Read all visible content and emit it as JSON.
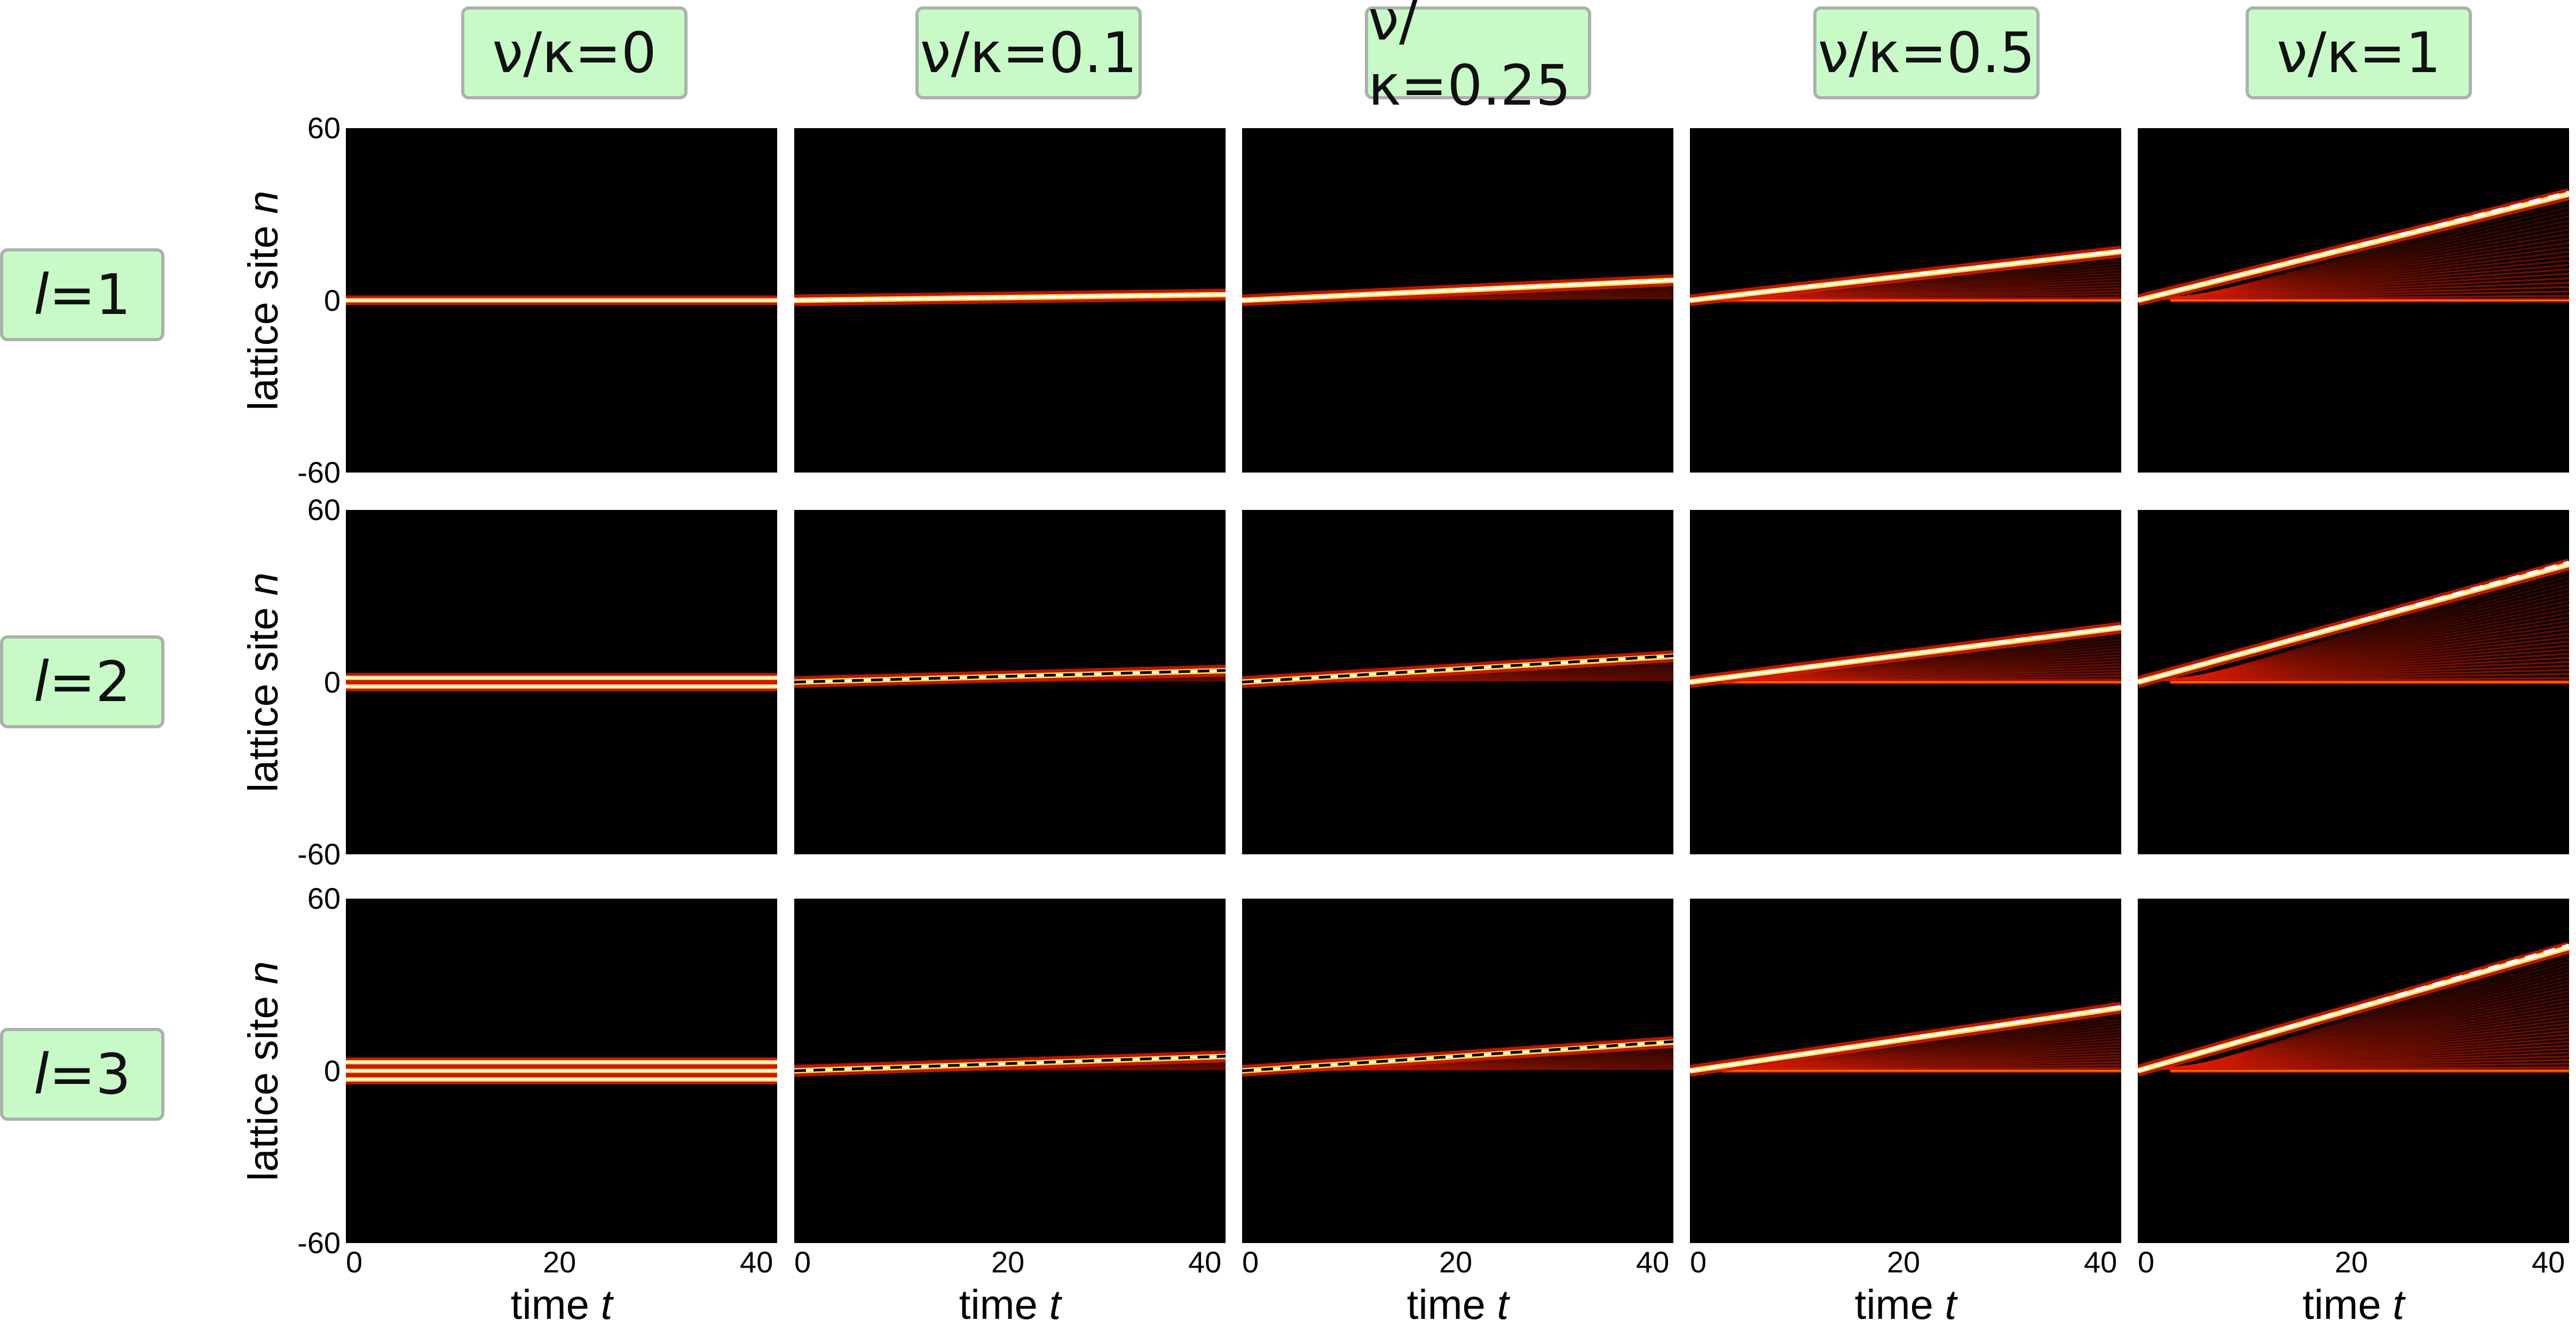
{
  "chart_data": {
    "type": "heatmap",
    "columns": [
      "ν/κ=0",
      "ν/κ=0.1",
      "ν/κ=0.25",
      "ν/κ=0.5",
      "ν/κ=1"
    ],
    "rows": [
      {
        "label_var": "l",
        "label_rest": "=1",
        "l": 1
      },
      {
        "label_var": "l",
        "label_rest": "=2",
        "l": 2
      },
      {
        "label_var": "l",
        "label_rest": "=3",
        "l": 3
      }
    ],
    "nu_over_kappa": [
      0,
      0.1,
      0.25,
      0.5,
      1
    ],
    "xlabel_text": "time ",
    "xlabel_var": "t",
    "ylabel_text": "lattice site ",
    "ylabel_var": "n",
    "xlim": [
      0,
      40
    ],
    "ylim": [
      -60,
      60
    ],
    "xticks": [
      "0",
      "20",
      "40"
    ],
    "yticks": [
      "60",
      "0",
      "-60"
    ],
    "drift_end_n": [
      [
        0,
        2,
        7,
        17,
        37
      ],
      [
        0,
        4,
        9,
        19,
        41
      ],
      [
        0,
        5,
        10,
        22,
        43
      ]
    ],
    "guide_line_color": "#ffffff",
    "guide_line_color_dark": "#000000",
    "colormap": [
      "#000000",
      "#7a0000",
      "#d81b00",
      "#ff7a00",
      "#ffe060",
      "#ffffff"
    ]
  }
}
